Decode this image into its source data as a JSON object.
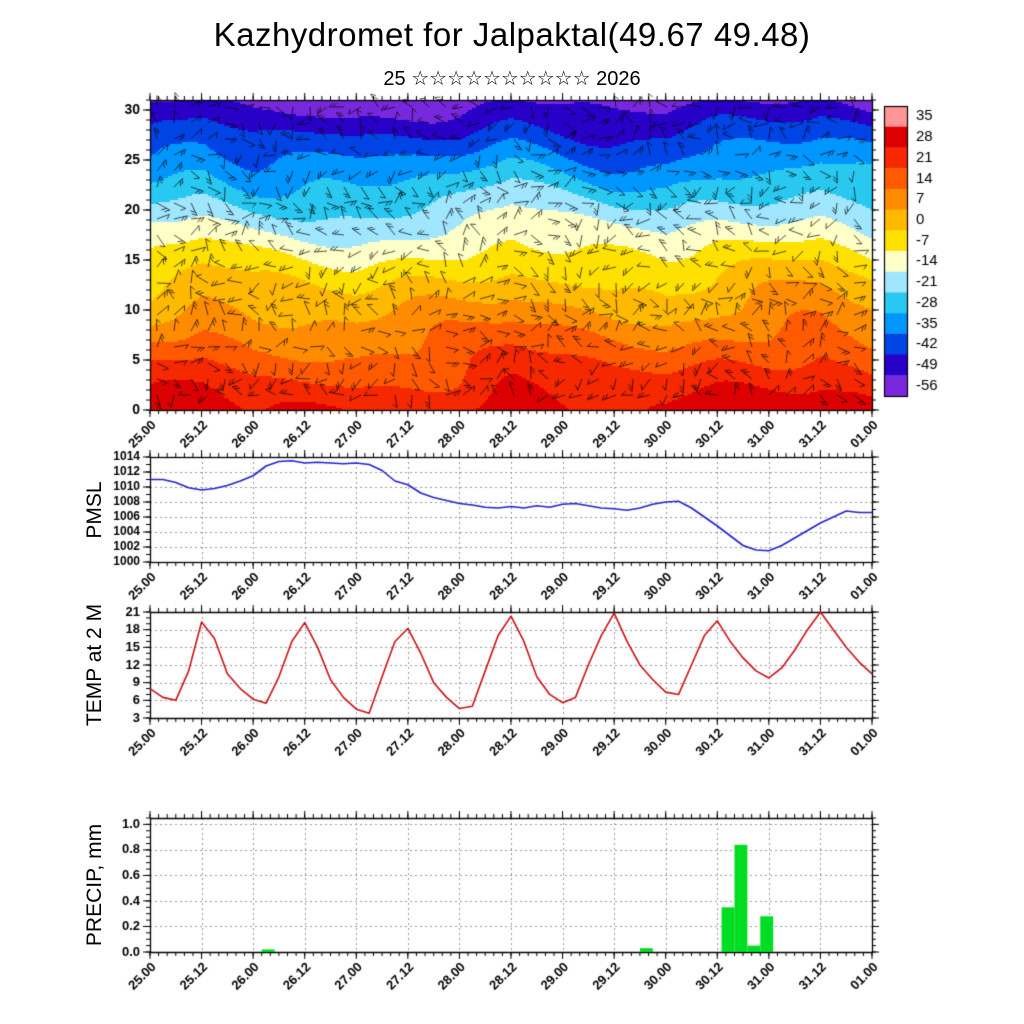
{
  "title": "Kazhydromet for Jalpaktal(49.67 49.48)",
  "subtitle": "25 ☆☆☆☆☆☆☆☆☆☆ 2026",
  "x_axis": {
    "tick_labels": [
      "25.00",
      "25.12",
      "26.00",
      "26.12",
      "27.00",
      "27.12",
      "28.00",
      "28.12",
      "29.00",
      "29.12",
      "30.00",
      "30.12",
      "31.00",
      "31.12",
      "01.00"
    ],
    "span_hours": 168,
    "major_step_hours": 12,
    "minor_step_hours": 2
  },
  "chart_data": [
    {
      "type": "heatmap",
      "name": "temperature-wind-cross-section",
      "description": "Time-height temperature cross-section with wind barbs overlay",
      "ylim": [
        0,
        31
      ],
      "yticks": [
        0,
        5,
        10,
        15,
        20,
        25,
        30
      ],
      "colorbar_ticks": [
        35,
        28,
        21,
        14,
        7,
        0,
        -7,
        -14,
        -21,
        -28,
        -35,
        -42,
        -49,
        -56
      ],
      "colorbar_colors": [
        "#ff9696",
        "#dc0000",
        "#f52800",
        "#ff5a00",
        "#ff8c00",
        "#ffb900",
        "#ffe100",
        "#ffffc8",
        "#a0e6ff",
        "#28c8f0",
        "#0096ff",
        "#0044e6",
        "#2800c8",
        "#7828dc"
      ],
      "surface_temp_by_12h": [
        22,
        26,
        21,
        20,
        19,
        21,
        23,
        27,
        24,
        21,
        20,
        24,
        25,
        27,
        22
      ],
      "lapse_linear": 2.0,
      "lapse_quadratic": 0.02,
      "overlay": "wind-barbs"
    },
    {
      "type": "line",
      "name": "pmsl",
      "ylabel": "PMSL",
      "line_color": "#2222cc",
      "ylim": [
        1000,
        1014
      ],
      "yticks": [
        1000,
        1002,
        1004,
        1006,
        1008,
        1010,
        1012,
        1014
      ],
      "y_minor_step": 1,
      "ytick_decimals": 0,
      "x_step_hours": 3,
      "values": [
        1011,
        1011,
        1010.6,
        1009.9,
        1009.6,
        1009.8,
        1010.2,
        1010.8,
        1011.5,
        1012.8,
        1013.4,
        1013.5,
        1013.2,
        1013.3,
        1013.2,
        1013.1,
        1013.2,
        1013.0,
        1012.2,
        1010.8,
        1010.3,
        1009.2,
        1008.6,
        1008.2,
        1007.8,
        1007.6,
        1007.3,
        1007.2,
        1007.4,
        1007.2,
        1007.5,
        1007.3,
        1007.7,
        1007.8,
        1007.5,
        1007.2,
        1007.1,
        1006.9,
        1007.2,
        1007.7,
        1008.0,
        1008.1,
        1007.2,
        1006.0,
        1004.8,
        1003.5,
        1002.2,
        1001.6,
        1001.5,
        1002.2,
        1003.2,
        1004.2,
        1005.2,
        1006.0,
        1006.8,
        1006.6,
        1006.6
      ]
    },
    {
      "type": "line",
      "name": "temp-2m",
      "ylabel": "TEMP at 2 M",
      "line_color": "#cc1111",
      "ylim": [
        3,
        21
      ],
      "yticks": [
        3,
        6,
        9,
        12,
        15,
        18,
        21
      ],
      "y_minor_step": 1,
      "ytick_decimals": 0,
      "x_step_hours": 3,
      "values": [
        8,
        6.5,
        6,
        11,
        19.3,
        16.5,
        10.5,
        8,
        6.2,
        5.5,
        10,
        16,
        19.2,
        15,
        9.5,
        6.5,
        4.5,
        3.8,
        10,
        16,
        18.2,
        14,
        9,
        6.5,
        4.6,
        5,
        11,
        17,
        20.3,
        16,
        10,
        7,
        5.6,
        6.5,
        12,
        17,
        20.8,
        16,
        12,
        9.5,
        7.4,
        7,
        12,
        17,
        19.5,
        16,
        13.2,
        11,
        9.8,
        11.5,
        14.5,
        18,
        21,
        18,
        15,
        12.5,
        10.5
      ]
    },
    {
      "type": "bar",
      "name": "precip",
      "ylabel": "PRECIP, mm",
      "bar_color": "#00dd22",
      "ylim": [
        0,
        1.05
      ],
      "yticks": [
        0,
        0.2,
        0.4,
        0.6,
        0.8,
        1.0
      ],
      "y_minor_step": 0.05,
      "ytick_decimals": 1,
      "bars": [
        {
          "x": 26,
          "w": 3,
          "v": 0.02
        },
        {
          "x": 114,
          "w": 3,
          "v": 0.03
        },
        {
          "x": 133,
          "w": 3,
          "v": 0.35
        },
        {
          "x": 136,
          "w": 3,
          "v": 0.84
        },
        {
          "x": 139,
          "w": 3,
          "v": 0.05
        },
        {
          "x": 142,
          "w": 3,
          "v": 0.28
        }
      ]
    }
  ]
}
